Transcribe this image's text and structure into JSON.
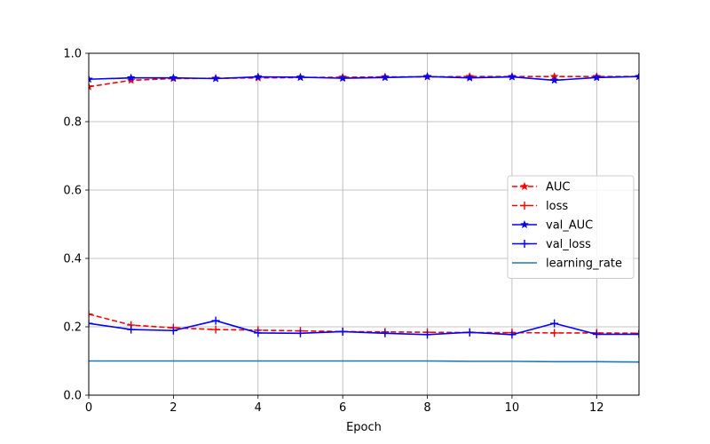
{
  "chart_data": {
    "type": "line",
    "xlabel": "Epoch",
    "ylabel": "",
    "xlim": [
      0,
      13
    ],
    "ylim": [
      0,
      1.0
    ],
    "x_ticks": [
      0,
      2,
      4,
      6,
      8,
      10,
      12
    ],
    "x_tick_labels": [
      "0",
      "2",
      "4",
      "6",
      "8",
      "10",
      "12"
    ],
    "y_ticks": [
      0,
      0.2,
      0.4,
      0.6,
      0.8,
      1.0
    ],
    "y_tick_labels": [
      "0.0",
      "0.2",
      "0.4",
      "0.6",
      "0.8",
      "1.0"
    ],
    "grid": true,
    "legend_position": "center-right",
    "x": [
      0,
      1,
      2,
      3,
      4,
      5,
      6,
      7,
      8,
      9,
      10,
      11,
      12,
      13
    ],
    "series": [
      {
        "name": "AUC",
        "color": "#ff0000",
        "dash": "dashed",
        "marker": "star",
        "values": [
          0.902,
          0.921,
          0.926,
          0.927,
          0.928,
          0.929,
          0.93,
          0.931,
          0.931,
          0.932,
          0.932,
          0.932,
          0.932,
          0.932
        ]
      },
      {
        "name": "loss",
        "color": "#ff0000",
        "dash": "dashed",
        "marker": "plus",
        "values": [
          0.237,
          0.205,
          0.197,
          0.192,
          0.19,
          0.188,
          0.186,
          0.185,
          0.184,
          0.183,
          0.183,
          0.182,
          0.182,
          0.181
        ]
      },
      {
        "name": "val_AUC",
        "color": "#0000ff",
        "dash": "solid",
        "marker": "star",
        "values": [
          0.924,
          0.928,
          0.928,
          0.926,
          0.931,
          0.93,
          0.927,
          0.929,
          0.932,
          0.928,
          0.931,
          0.921,
          0.929,
          0.932
        ]
      },
      {
        "name": "val_loss",
        "color": "#0000ff",
        "dash": "solid",
        "marker": "plus",
        "values": [
          0.21,
          0.192,
          0.189,
          0.218,
          0.182,
          0.181,
          0.186,
          0.181,
          0.177,
          0.184,
          0.177,
          0.21,
          0.178,
          0.178
        ]
      },
      {
        "name": "learning_rate",
        "color": "#1f77b4",
        "dash": "solid",
        "marker": "none",
        "values": [
          0.1,
          0.1,
          0.1,
          0.1,
          0.1,
          0.1,
          0.1,
          0.1,
          0.1,
          0.099,
          0.099,
          0.098,
          0.098,
          0.097
        ]
      }
    ]
  }
}
